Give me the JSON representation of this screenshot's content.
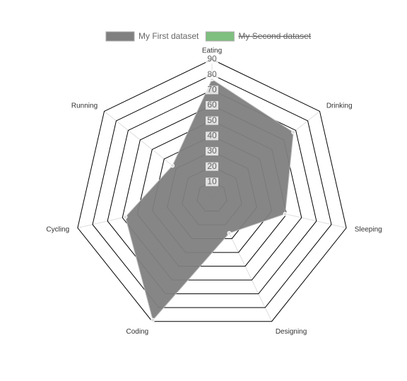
{
  "chart_data": {
    "type": "radar",
    "categories": [
      "Eating",
      "Drinking",
      "Sleeping",
      "Designing",
      "Coding",
      "Cycling",
      "Running"
    ],
    "series": [
      {
        "name": "My First dataset",
        "color": "#808080",
        "values": [
          77,
          68,
          49,
          26,
          89,
          58,
          33
        ]
      },
      {
        "name": "My Second dataset",
        "color": "#7fbf7f",
        "hidden": true
      }
    ],
    "ylim": [
      0,
      90
    ],
    "yticks": [
      10,
      20,
      30,
      40,
      50,
      60,
      70,
      80,
      90
    ],
    "grid": true,
    "legend": "top"
  }
}
